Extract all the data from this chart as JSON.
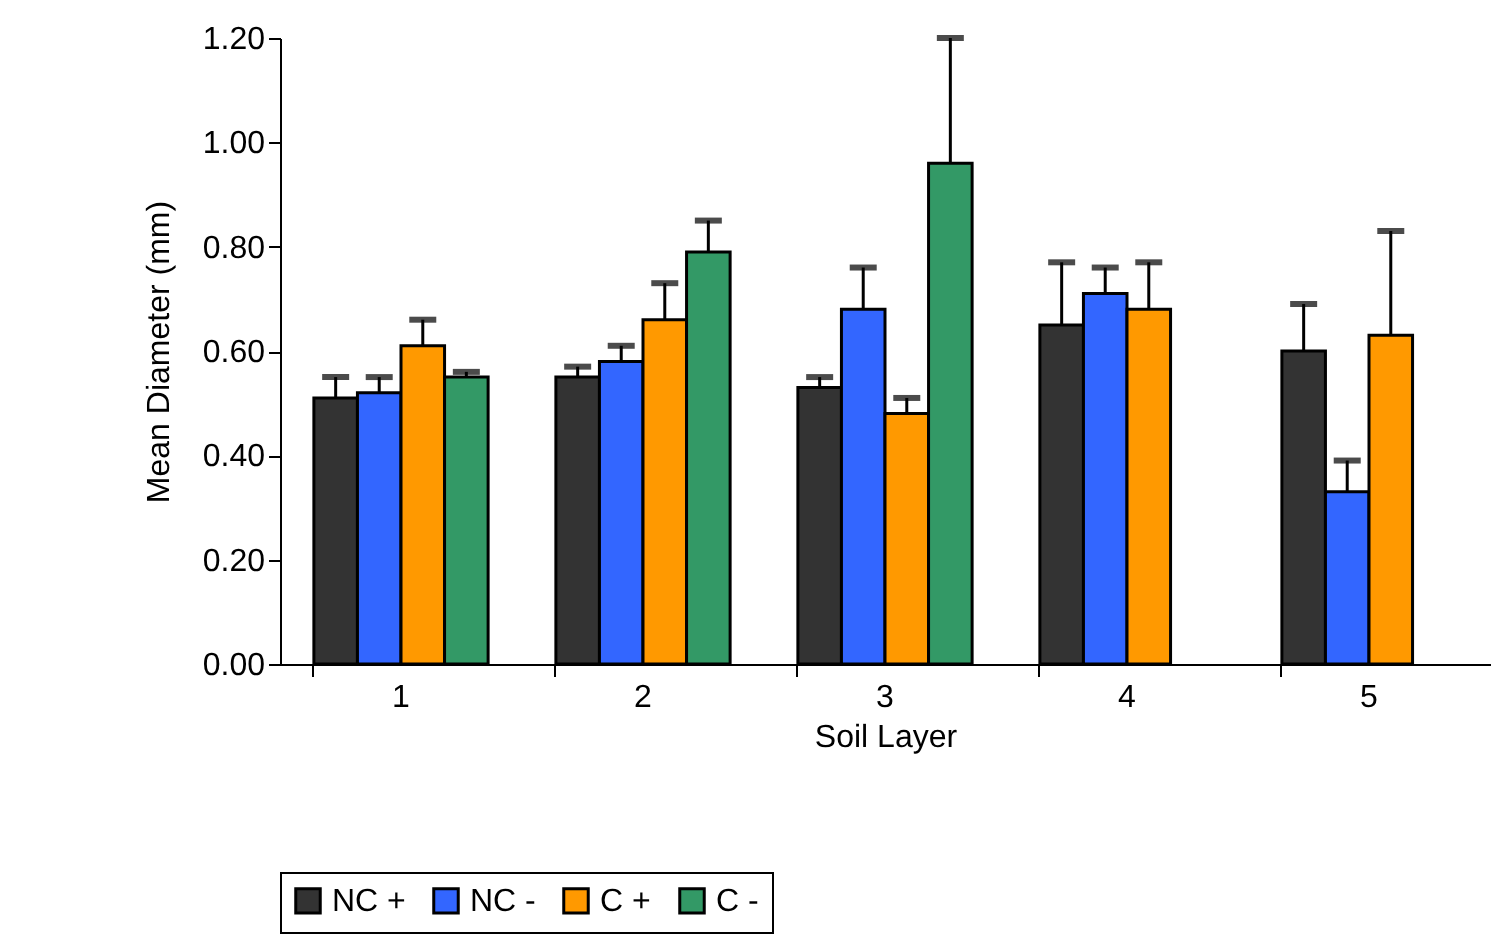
{
  "chart_data": {
    "type": "bar",
    "xlabel": "Soil Layer",
    "ylabel": "Mean Diameter (mm)",
    "categories": [
      "1",
      "2",
      "3",
      "4",
      "5"
    ],
    "series": [
      {
        "name": "NC +",
        "color": "#333333",
        "values": [
          0.51,
          0.55,
          0.53,
          0.65,
          0.6
        ],
        "errors": [
          [
            0.51,
            0.55
          ],
          [
            0.55,
            0.57
          ],
          [
            0.53,
            0.55
          ],
          [
            0.65,
            0.77
          ],
          [
            0.6,
            0.69
          ]
        ]
      },
      {
        "name": "NC -",
        "color": "#3366ff",
        "values": [
          0.52,
          0.58,
          0.68,
          0.71,
          0.33
        ],
        "errors": [
          [
            0.52,
            0.55
          ],
          [
            0.58,
            0.61
          ],
          [
            0.68,
            0.76
          ],
          [
            0.71,
            0.76
          ],
          [
            0.33,
            0.39
          ]
        ]
      },
      {
        "name": "C +",
        "color": "#ff9900",
        "values": [
          0.61,
          0.66,
          0.48,
          0.68,
          0.63
        ],
        "errors": [
          [
            0.61,
            0.66
          ],
          [
            0.66,
            0.73
          ],
          [
            0.48,
            0.51
          ],
          [
            0.68,
            0.77
          ],
          [
            0.63,
            0.83
          ]
        ]
      },
      {
        "name": "C -",
        "color": "#339966",
        "values": [
          0.55,
          0.79,
          0.96,
          null,
          null
        ],
        "errors": [
          [
            0.55,
            0.56
          ],
          [
            0.79,
            0.85
          ],
          [
            0.96,
            1.2
          ],
          null,
          null
        ]
      }
    ],
    "ylim": [
      0,
      1.2
    ],
    "yticks": [
      {
        "value": 0,
        "label": "0.00"
      },
      {
        "value": 0.2,
        "label": "0.20"
      },
      {
        "value": 0.4,
        "label": "0.40"
      },
      {
        "value": 0.6,
        "label": "0.60"
      },
      {
        "value": 0.8,
        "label": "0.80"
      },
      {
        "value": 1,
        "label": "1.00"
      },
      {
        "value": 1.2,
        "label": "1.20"
      }
    ],
    "grid": false,
    "legend": "bottom"
  }
}
